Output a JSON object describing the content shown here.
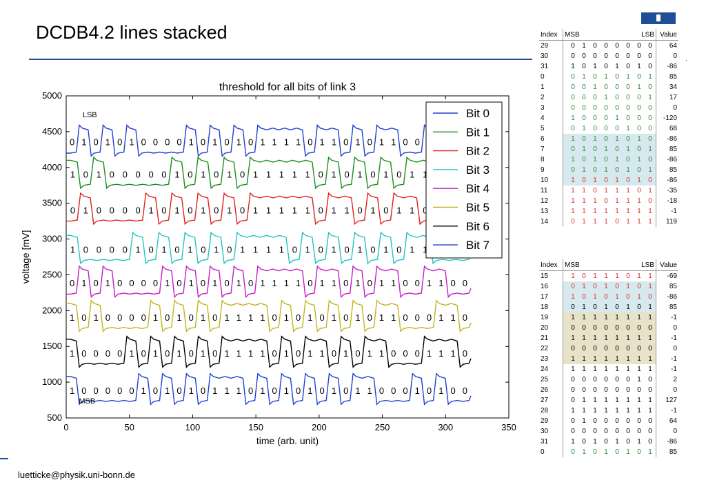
{
  "slide": {
    "title": "DCDB4.2 lines stacked",
    "footer": "luetticke@physik.uni-bonn.de",
    "dot": "."
  },
  "colors": {
    "accent": "#1f4e96",
    "bit0": "#1f3fd1",
    "bit1": "#1c8c1c",
    "bit2": "#e0201c",
    "bit3": "#22c4c4",
    "bit4": "#c31ec3",
    "bit5": "#c2b41c",
    "bit6": "#000000",
    "bit7": "#1f3fd1"
  },
  "chart_data": {
    "type": "line",
    "title": "threshold for all bits of link 3",
    "xlabel": "time (arb. unit)",
    "ylabel": "voltage [mV]",
    "xlim": [
      0,
      350
    ],
    "ylim": [
      500,
      5000
    ],
    "xticks": [
      0,
      50,
      100,
      150,
      200,
      250,
      300,
      350
    ],
    "yticks": [
      500,
      1000,
      1500,
      2000,
      2500,
      3000,
      3500,
      4000,
      4500,
      5000
    ],
    "grid": false,
    "legend_position": "top-right",
    "annotations": [
      {
        "text": "LSB",
        "x": 13,
        "y": 4700
      },
      {
        "text": "MSB",
        "x": 10,
        "y": 700
      }
    ],
    "series": [
      {
        "name": "Bit 0",
        "base": 4200,
        "bits": "0101010000101010111101101011001100"
      },
      {
        "name": "Bit 1",
        "base": 3750,
        "bits": "1010000010101011111010101011000"
      },
      {
        "name": "Bit 2",
        "base": 3250,
        "bits": "0100001010101011111011010110000"
      },
      {
        "name": "Bit 3",
        "base": 2700,
        "bits": "1000010101010111101010101011000"
      },
      {
        "name": "Bit 4",
        "base": 2230,
        "bits": "0101000010101010111101101011001100"
      },
      {
        "name": "Bit 5",
        "base": 1750,
        "bits": "1010000101010111101010101011000110"
      },
      {
        "name": "Bit 6",
        "base": 1250,
        "bits": "1000010101010111101011010110001110"
      },
      {
        "name": "Bit 7",
        "base": 730,
        "bits": "1000001010101110101010101100010100"
      }
    ]
  },
  "table1": {
    "headers": {
      "index": "Index",
      "msb": "MSB",
      "lsb": "LSB",
      "value": "Value"
    },
    "rows": [
      {
        "index": "29",
        "bits": [
          "0",
          "1",
          "0",
          "0",
          "0",
          "0",
          "0",
          "0"
        ],
        "value": "64",
        "color": "k",
        "bg": ""
      },
      {
        "index": "30",
        "bits": [
          "0",
          "0",
          "0",
          "0",
          "0",
          "0",
          "0",
          "0"
        ],
        "value": "0",
        "color": "k",
        "bg": ""
      },
      {
        "index": "31",
        "bits": [
          "1",
          "0",
          "1",
          "0",
          "1",
          "0",
          "1",
          "0"
        ],
        "value": "-86",
        "color": "k",
        "bg": ""
      },
      {
        "index": "0",
        "bits": [
          "0",
          "1",
          "0",
          "1",
          "0",
          "1",
          "0",
          "1"
        ],
        "value": "85",
        "color": "g",
        "bg": ""
      },
      {
        "index": "1",
        "bits": [
          "0",
          "0",
          "1",
          "0",
          "0",
          "0",
          "1",
          "0"
        ],
        "value": "34",
        "color": "g",
        "bg": ""
      },
      {
        "index": "2",
        "bits": [
          "0",
          "0",
          "0",
          "1",
          "0",
          "0",
          "0",
          "1"
        ],
        "value": "17",
        "color": "g",
        "bg": ""
      },
      {
        "index": "3",
        "bits": [
          "0",
          "0",
          "0",
          "0",
          "0",
          "0",
          "0",
          "0"
        ],
        "value": "0",
        "color": "g",
        "bg": ""
      },
      {
        "index": "4",
        "bits": [
          "1",
          "0",
          "0",
          "0",
          "1",
          "0",
          "0",
          "0"
        ],
        "value": "-120",
        "color": "g",
        "bg": ""
      },
      {
        "index": "5",
        "bits": [
          "0",
          "1",
          "0",
          "0",
          "0",
          "1",
          "0",
          "0"
        ],
        "value": "68",
        "color": "g",
        "bg": ""
      },
      {
        "index": "6",
        "bits": [
          "1",
          "0",
          "1",
          "0",
          "1",
          "0",
          "1",
          "0"
        ],
        "value": "-86",
        "color": "g",
        "bg": "b"
      },
      {
        "index": "7",
        "bits": [
          "0",
          "1",
          "0",
          "1",
          "0",
          "1",
          "0",
          "1"
        ],
        "value": "85",
        "color": "g",
        "bg": "b"
      },
      {
        "index": "8",
        "bits": [
          "1",
          "0",
          "1",
          "0",
          "1",
          "0",
          "1",
          "0"
        ],
        "value": "-86",
        "color": "g",
        "bg": "b"
      },
      {
        "index": "9",
        "bits": [
          "0",
          "1",
          "0",
          "1",
          "0",
          "1",
          "0",
          "1"
        ],
        "value": "85",
        "color": "g",
        "bg": "b"
      },
      {
        "index": "10",
        "bits": [
          "1",
          "0",
          "1",
          "0",
          "1",
          "0",
          "1",
          "0"
        ],
        "value": "-86",
        "color": "r",
        "bg": "b"
      },
      {
        "index": "11",
        "bits": [
          "1",
          "1",
          "0",
          "1",
          "1",
          "1",
          "0",
          "1"
        ],
        "value": "-35",
        "color": "r",
        "bg": ""
      },
      {
        "index": "12",
        "bits": [
          "1",
          "1",
          "1",
          "0",
          "1",
          "1",
          "1",
          "0"
        ],
        "value": "-18",
        "color": "r",
        "bg": ""
      },
      {
        "index": "13",
        "bits": [
          "1",
          "1",
          "1",
          "1",
          "1",
          "1",
          "1",
          "1"
        ],
        "value": "-1",
        "color": "r",
        "bg": ""
      },
      {
        "index": "14",
        "bits": [
          "0",
          "1",
          "1",
          "1",
          "0",
          "1",
          "1",
          "1"
        ],
        "value": "119",
        "color": "r",
        "bg": ""
      }
    ]
  },
  "table2": {
    "headers": {
      "index": "Index",
      "msb": "MSB",
      "lsb": "LSB",
      "value": "Value"
    },
    "rows": [
      {
        "index": "15",
        "bits": [
          "1",
          "0",
          "1",
          "1",
          "1",
          "0",
          "1",
          "1"
        ],
        "value": "-69",
        "color": "r",
        "bg": ""
      },
      {
        "index": "16",
        "bits": [
          "0",
          "1",
          "0",
          "1",
          "0",
          "1",
          "0",
          "1"
        ],
        "value": "85",
        "color": "r",
        "bg": "b"
      },
      {
        "index": "17",
        "bits": [
          "1",
          "0",
          "1",
          "0",
          "1",
          "0",
          "1",
          "0"
        ],
        "value": "-86",
        "color": "r",
        "bg": "b"
      },
      {
        "index": "18",
        "bits": [
          "0",
          "1",
          "0",
          "1",
          "0",
          "1",
          "0",
          "1"
        ],
        "value": "85",
        "color": "k",
        "bg": "b"
      },
      {
        "index": "19",
        "bits": [
          "1",
          "1",
          "1",
          "1",
          "1",
          "1",
          "1",
          "1"
        ],
        "value": "-1",
        "color": "k",
        "bg": "y"
      },
      {
        "index": "20",
        "bits": [
          "0",
          "0",
          "0",
          "0",
          "0",
          "0",
          "0",
          "0"
        ],
        "value": "0",
        "color": "k",
        "bg": "y"
      },
      {
        "index": "21",
        "bits": [
          "1",
          "1",
          "1",
          "1",
          "1",
          "1",
          "1",
          "1"
        ],
        "value": "-1",
        "color": "k",
        "bg": "y"
      },
      {
        "index": "22",
        "bits": [
          "0",
          "0",
          "0",
          "0",
          "0",
          "0",
          "0",
          "0"
        ],
        "value": "0",
        "color": "k",
        "bg": "y"
      },
      {
        "index": "23",
        "bits": [
          "1",
          "1",
          "1",
          "1",
          "1",
          "1",
          "1",
          "1"
        ],
        "value": "-1",
        "color": "k",
        "bg": "y"
      },
      {
        "index": "24",
        "bits": [
          "1",
          "1",
          "1",
          "1",
          "1",
          "1",
          "1",
          "1"
        ],
        "value": "-1",
        "color": "k",
        "bg": ""
      },
      {
        "index": "25",
        "bits": [
          "0",
          "0",
          "0",
          "0",
          "0",
          "0",
          "1",
          "0"
        ],
        "value": "2",
        "color": "k",
        "bg": ""
      },
      {
        "index": "26",
        "bits": [
          "0",
          "0",
          "0",
          "0",
          "0",
          "0",
          "0",
          "0"
        ],
        "value": "0",
        "color": "k",
        "bg": ""
      },
      {
        "index": "27",
        "bits": [
          "0",
          "1",
          "1",
          "1",
          "1",
          "1",
          "1",
          "1"
        ],
        "value": "127",
        "color": "k",
        "bg": ""
      },
      {
        "index": "28",
        "bits": [
          "1",
          "1",
          "1",
          "1",
          "1",
          "1",
          "1",
          "1"
        ],
        "value": "-1",
        "color": "k",
        "bg": ""
      },
      {
        "index": "29",
        "bits": [
          "0",
          "1",
          "0",
          "0",
          "0",
          "0",
          "0",
          "0"
        ],
        "value": "64",
        "color": "k",
        "bg": ""
      },
      {
        "index": "30",
        "bits": [
          "0",
          "0",
          "0",
          "0",
          "0",
          "0",
          "0",
          "0"
        ],
        "value": "0",
        "color": "k",
        "bg": ""
      },
      {
        "index": "31",
        "bits": [
          "1",
          "0",
          "1",
          "0",
          "1",
          "0",
          "1",
          "0"
        ],
        "value": "-86",
        "color": "k",
        "bg": ""
      },
      {
        "index": "0",
        "bits": [
          "0",
          "1",
          "0",
          "1",
          "0",
          "1",
          "0",
          "1"
        ],
        "value": "85",
        "color": "g",
        "bg": ""
      }
    ]
  }
}
